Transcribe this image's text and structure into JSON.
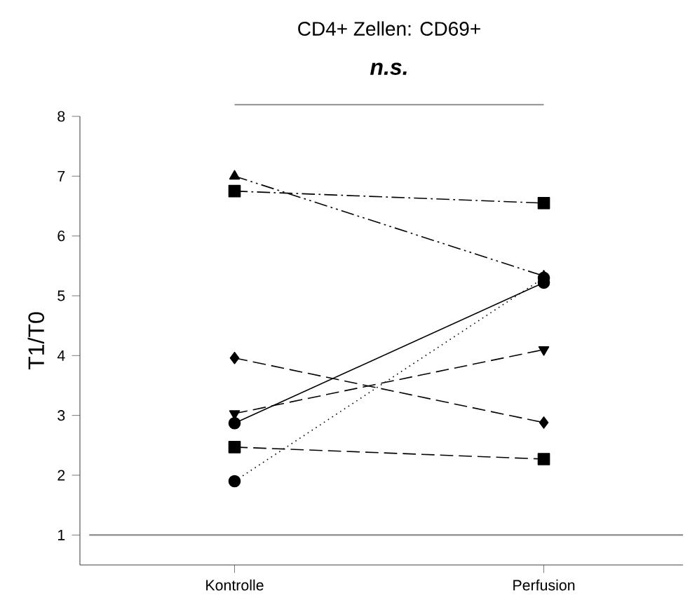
{
  "chart_data": {
    "type": "line",
    "title": "CD4+ Zellen: CD69+",
    "ylabel": "T1/T0",
    "categories": [
      "Kontrolle",
      "Perfusion"
    ],
    "series": [
      {
        "color": "#000000",
        "marker": "triangle",
        "line_style": "dashdotdotted",
        "values": [
          7.0,
          5.33
        ]
      },
      {
        "color": "#000000",
        "marker": "square",
        "line_style": "dashdotted",
        "values": [
          6.75,
          6.55
        ]
      },
      {
        "color": "#000000",
        "marker": "diamond",
        "line_style": "dashed",
        "values": [
          3.96,
          2.88
        ]
      },
      {
        "color": "#000000",
        "marker": "triangle down",
        "line_style": "dashed",
        "values": [
          3.03,
          4.1
        ]
      },
      {
        "color": "#000000",
        "marker": "circle",
        "line_style": "solid",
        "values": [
          2.87,
          5.22
        ]
      },
      {
        "color": "#000000",
        "marker": "square",
        "line_style": "dashed",
        "values": [
          2.47,
          2.27
        ]
      },
      {
        "color": "#000000",
        "marker": "circle",
        "line_style": "dotted",
        "values": [
          1.9,
          5.3
        ]
      }
    ],
    "ylim": [
      0.5,
      8
    ],
    "yticks": [
      1,
      2,
      3,
      4,
      5,
      6,
      7,
      8
    ],
    "ref_lines": [
      {
        "axis": "y",
        "value": 1,
        "color": "#808080"
      }
    ],
    "annotations": [
      "n.s."
    ],
    "grid": false
  }
}
